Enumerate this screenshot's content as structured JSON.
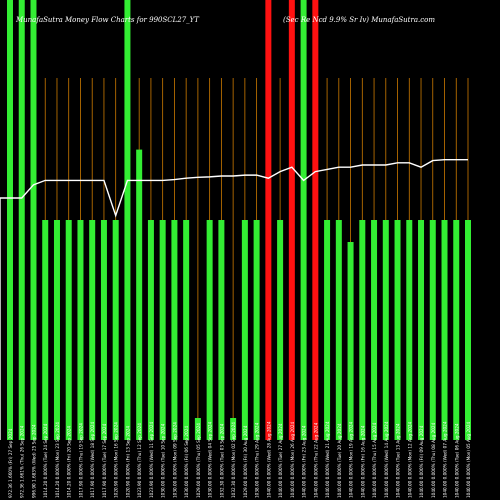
{
  "header": {
    "left": "MunafaSutra  Money Flow  Charts for 990SCL27_YT",
    "right": "(Sec Re Ncd 9.9% Sr Iv) MunafaSutra.com"
  },
  "colors": {
    "background": "#000000",
    "up": "#33ee33",
    "down": "#ff1111",
    "grid": "#cc7a00",
    "line": "#ffffff",
    "text": "#ffffff"
  },
  "chart_data": {
    "type": "bar",
    "grid": "vertical",
    "categories": [
      "(Fri) 27 Sep 2024",
      "(Thu) 26 Sep 2024",
      "(Wed) 25 Sep 2024",
      "(Tue) 24 Sep 2024",
      "(Mon) 23 Sep 2024",
      "(Fri) 20 Sep 2024",
      "(Thu) 19 Sep 2024",
      "(Wed) 18 Sep 2024",
      "(Tue) 17 Sep 2024",
      "(Mon) 16 Sep 2024",
      "(Fri) 13 Sep 2024",
      "(Thu) 12 Sep 2024",
      "(Wed) 11 Sep 2024",
      "(Tue) 10 Sep 2024",
      "(Mon) 09 Sep 2024",
      "(Fri) 06 Sep 2024",
      "(Thu) 05 Sep 2024",
      "(Wed) 04 Sep 2024",
      "(Tue) 03 Sep 2024",
      "(Mon) 02 Sep 2024",
      "(Fri) 30 Aug 2024",
      "(Thu) 29 Aug 2024",
      "(Wed) 28 Aug 2024",
      "(Tue) 27 Aug 2024",
      "(Mon) 26 Aug 2024",
      "(Fri) 23 Aug 2024",
      "(Thu) 22 Aug 2024",
      "(Wed) 21 Aug 2024",
      "(Tue) 20 Aug 2024",
      "(Mon) 19 Aug 2024",
      "(Fri) 16 Aug 2024",
      "(Thu) 15 Aug 2024",
      "(Wed) 14 Aug 2024",
      "(Tue) 13 Aug 2024",
      "(Mon) 12 Aug 2024",
      "(Fri) 09 Aug 2024",
      "(Thu) 08 Aug 2024",
      "(Wed) 07 Aug 2024",
      "(Tue) 06 Aug 2024",
      "(Mon) 05 Aug 2024"
    ],
    "x_tick_labels": [
      "972.36 1.660%",
      "972.36 1.661%",
      "996.90 1.683%",
      "1014.20 0.000%",
      "1014.20 0.000%",
      "1014.20 0.000%",
      "1017.90 0.000%",
      "1017.90 0.000%",
      "1017.90 0.000%",
      "1020.90 0.000%",
      "1020.90 0.000%",
      "1023.90 0.000%",
      "1023.90 0.000%",
      "1030.00 0.000%",
      "1030.00 0.000%",
      "1030.00 0.000%",
      "1029.00 0.000%",
      "1030.00 0.000%",
      "1032.30 0.000%",
      "1032.30 0.000%",
      "1029.00 0.000%",
      "1038.00 0.000%",
      "1040.00 0.000%",
      "1040.00 0.000%",
      "1040.00 0.000%",
      "1040.00 0.000%",
      "1040.00 0.000%",
      "1040.00 0.000%",
      "1040.00 0.000%",
      "1040.00 0.000%",
      "1040.00 0.000%",
      "1040.00 0.000%",
      "1040.00 0.000%",
      "1040.00 0.000%",
      "1040.00 0.000%",
      "1040.00 0.000%",
      "1040.00 0.000%",
      "1040.00 0.000%",
      "1040.00 0.000%",
      "1040.00 0.000%"
    ],
    "ylim": [
      0,
      100
    ],
    "series": [
      {
        "values": [
          100,
          100,
          100,
          50,
          50,
          50,
          50,
          50,
          50,
          50,
          100,
          66,
          50,
          50,
          50,
          50,
          5,
          50,
          50,
          5,
          50,
          50,
          100,
          50,
          100,
          100,
          100,
          50,
          50,
          45,
          50,
          50,
          50,
          50,
          50,
          50,
          50,
          50,
          50,
          50
        ],
        "colors": [
          "up",
          "up",
          "up",
          "up",
          "up",
          "up",
          "up",
          "up",
          "up",
          "up",
          "up",
          "up",
          "up",
          "up",
          "up",
          "up",
          "up",
          "up",
          "up",
          "up",
          "up",
          "up",
          "down",
          "up",
          "down",
          "up",
          "down",
          "up",
          "up",
          "up",
          "up",
          "up",
          "up",
          "up",
          "up",
          "up",
          "up",
          "up",
          "up",
          "up"
        ]
      },
      {
        "type": "line",
        "values": [
          55,
          55,
          58,
          59,
          59,
          59,
          59,
          59,
          59,
          51,
          59,
          59,
          59,
          59,
          59.2,
          59.5,
          59.7,
          59.8,
          60,
          60,
          60.2,
          60.2,
          59.5,
          61,
          62,
          59,
          61,
          61.5,
          62,
          62,
          62.5,
          62.5,
          62.5,
          63,
          63,
          62,
          63.5,
          63.7,
          63.7,
          63.7
        ]
      }
    ]
  }
}
